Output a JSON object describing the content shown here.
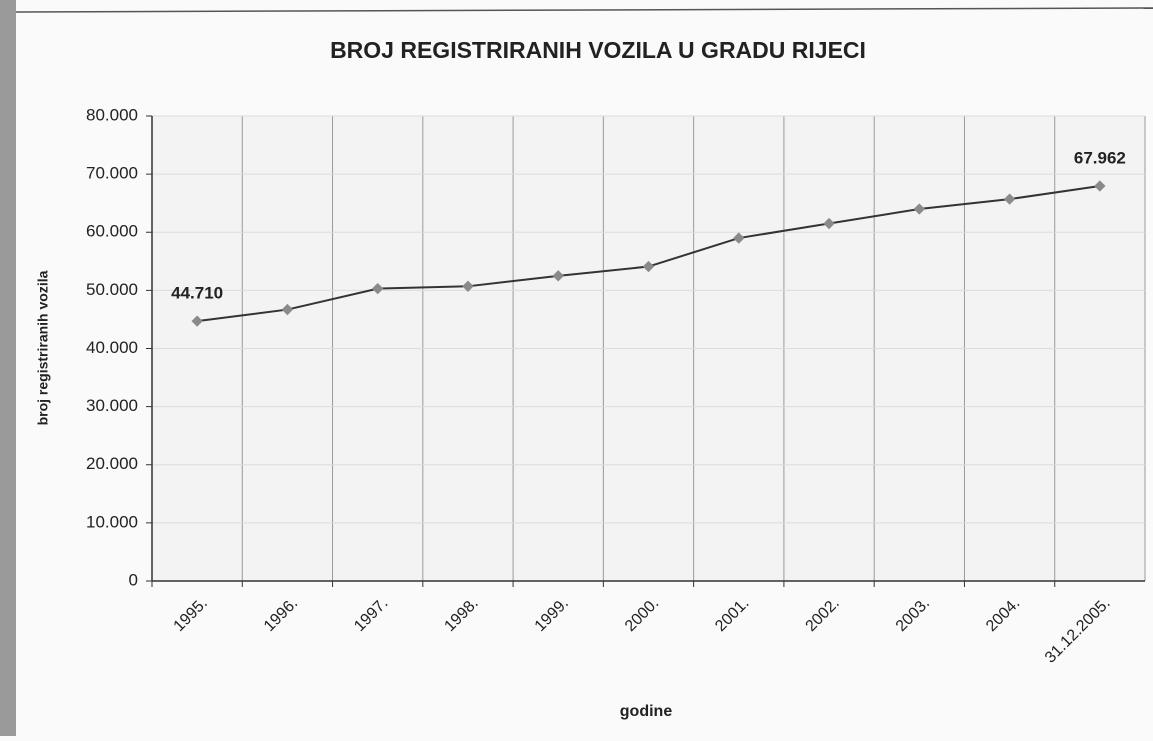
{
  "chart_data": {
    "type": "line",
    "title": "BROJ REGISTRIRANIH VOZILA U GRADU RIJECI",
    "x_label": "godine",
    "y_label": "broj registriranih vozila",
    "categories": [
      "1995.",
      "1996.",
      "1997.",
      "1998.",
      "1999.",
      "2000.",
      "2001.",
      "2002.",
      "2003.",
      "2004.",
      "31.12.2005."
    ],
    "series": [
      {
        "name": "broj registriranih vozila",
        "color": "#333333",
        "values": [
          44710,
          46700,
          50300,
          50700,
          52500,
          54100,
          59000,
          61500,
          64000,
          65700,
          67962
        ],
        "value_labels": [
          "44.710",
          null,
          null,
          null,
          null,
          null,
          null,
          null,
          null,
          null,
          "67.962"
        ]
      }
    ],
    "marker_color": "#8a8a8a",
    "ylim": [
      0,
      80000
    ],
    "yticks": [
      0,
      {
        "value": 10000,
        "label": "10.000"
      },
      {
        "value": 20000,
        "label": "20.000"
      },
      {
        "value": 30000,
        "label": "30.000"
      },
      {
        "value": 40000,
        "label": "40.000"
      },
      {
        "value": 50000,
        "label": "50.000"
      },
      {
        "value": 60000,
        "label": "60.000"
      },
      {
        "value": 70000,
        "label": "70.000"
      },
      {
        "value": 80000,
        "label": "80.000"
      }
    ],
    "grid": true
  }
}
